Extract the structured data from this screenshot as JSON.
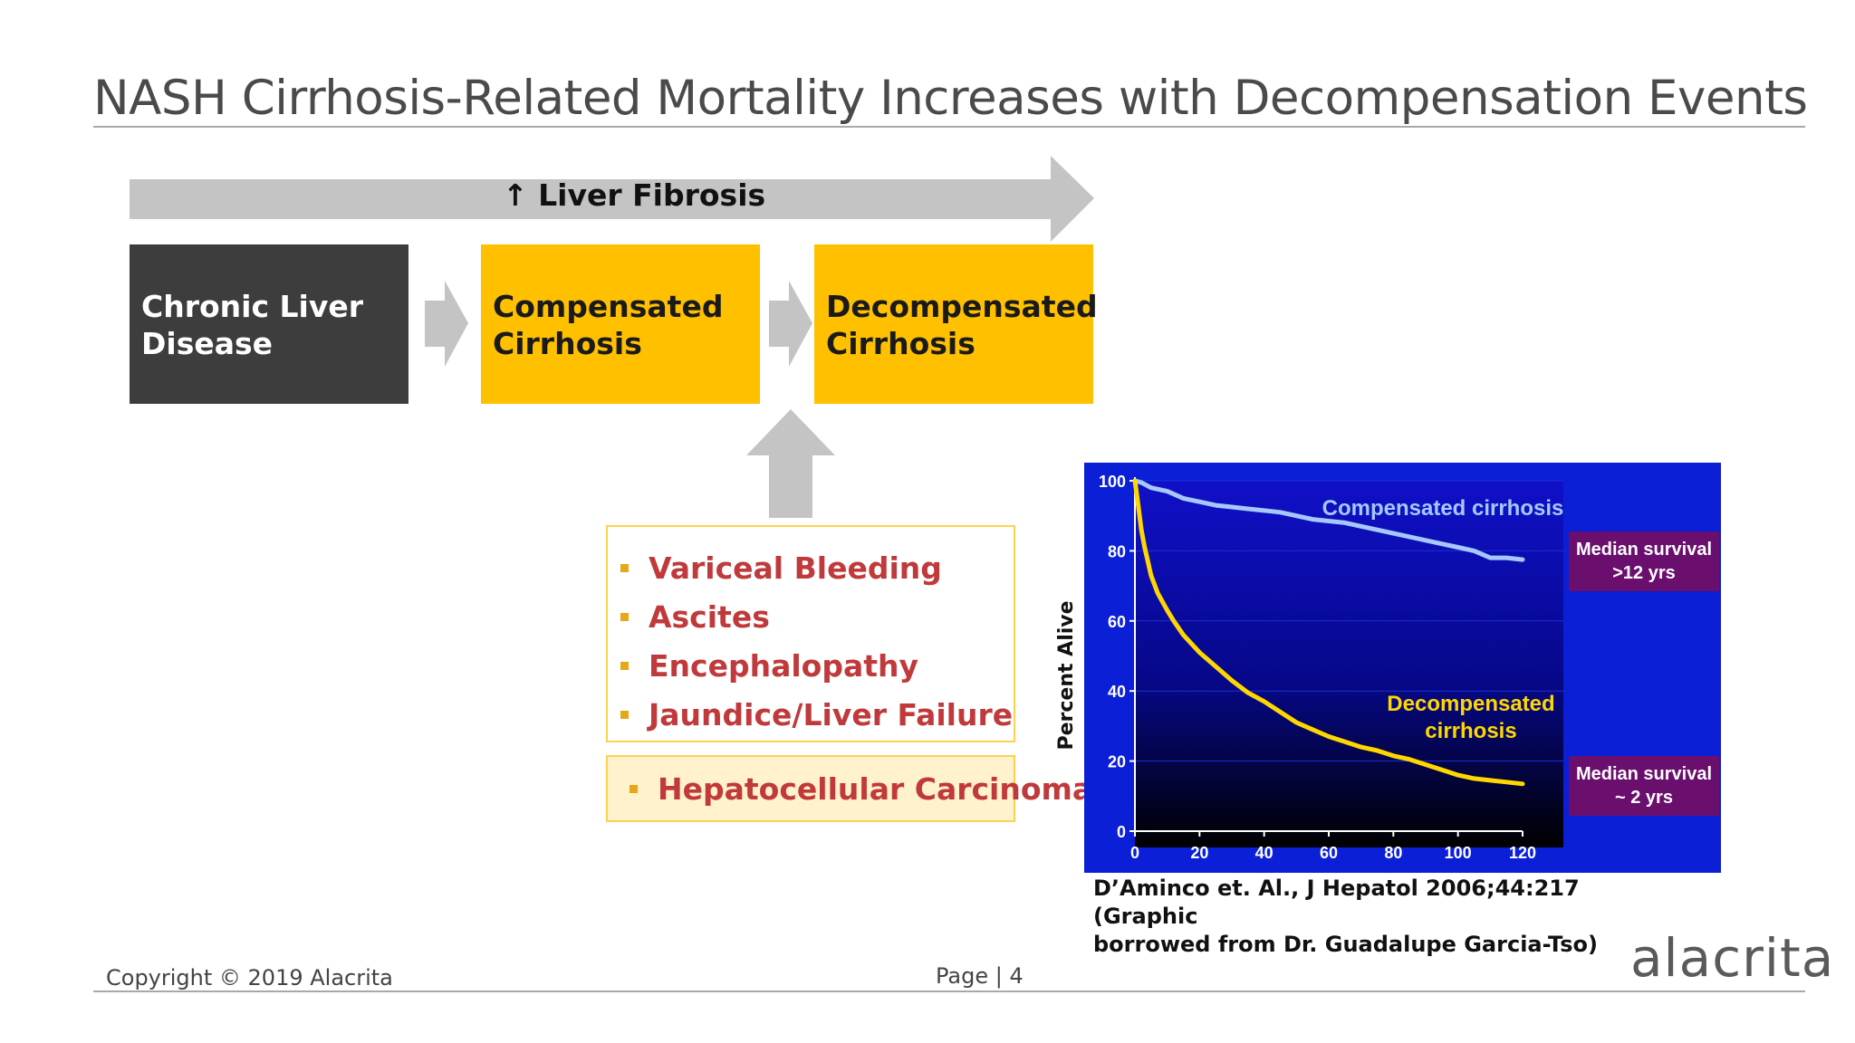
{
  "slide": {
    "title": "NASH Cirrhosis-Related Mortality Increases with Decompensation Events",
    "fibrosis_label": "↑ Liver Fibrosis",
    "stages": [
      {
        "line1": "Chronic Liver",
        "line2": "Disease"
      },
      {
        "line1": "Compensated",
        "line2": "Cirrhosis"
      },
      {
        "line1": "Decompensated",
        "line2": "Cirrhosis"
      }
    ],
    "events": [
      "Variceal Bleeding",
      "Ascites",
      "Encephalopathy",
      "Jaundice/Liver Failure"
    ],
    "hcc": "Hepatocellular Carcinoma",
    "citation_line1": "D’Aminco et. Al., J Hepatol 2006;44:217 (Graphic",
    "citation_line2": "borrowed from Dr. Guadalupe Garcia-Tso)",
    "copyright": "Copyright © 2019 Alacrita",
    "page": "Page | 4",
    "logo": "alacrita",
    "colors": {
      "accent": "#ffc000",
      "dark": "#3d3d3d",
      "event_text": "#c0393b",
      "chart_bg": "#0a1fd6"
    }
  },
  "chart_data": {
    "type": "line",
    "title": "",
    "xlabel": "",
    "ylabel": "Percent Alive",
    "xlim": [
      0,
      120
    ],
    "ylim": [
      0,
      100
    ],
    "xticks": [
      "0",
      "20",
      "40",
      "60",
      "80",
      "100",
      "120"
    ],
    "yticks": [
      "0",
      "20",
      "40",
      "60",
      "80",
      "100"
    ],
    "series": [
      {
        "name": "Compensated cirrhosis",
        "color": "#a6c8ff",
        "x": [
          0,
          2,
          5,
          10,
          15,
          20,
          25,
          30,
          35,
          40,
          45,
          50,
          55,
          60,
          65,
          70,
          75,
          80,
          85,
          90,
          95,
          100,
          105,
          110,
          115,
          120
        ],
        "y": [
          100,
          99.5,
          98,
          97,
          95,
          94,
          93,
          92.5,
          92,
          91.5,
          91,
          90,
          89,
          88.5,
          88,
          87,
          86,
          85,
          84,
          83,
          82,
          81,
          80,
          78,
          78,
          77.5
        ]
      },
      {
        "name": "Decompensated cirrhosis",
        "color": "#ffd700",
        "x": [
          0,
          1,
          2,
          3,
          4,
          5,
          7,
          10,
          12,
          15,
          20,
          25,
          30,
          35,
          40,
          45,
          50,
          55,
          60,
          65,
          70,
          75,
          80,
          85,
          90,
          95,
          100,
          105,
          110,
          115,
          120
        ],
        "y": [
          100,
          93,
          86,
          81,
          77,
          73,
          68,
          63,
          60,
          56,
          51,
          47,
          43,
          39.5,
          37,
          34,
          31,
          29,
          27,
          25.5,
          24,
          23,
          21.5,
          20.5,
          19,
          17.5,
          16,
          15,
          14.5,
          14,
          13.5
        ]
      }
    ],
    "annotations": [
      {
        "series": "Compensated cirrhosis",
        "label": "Median survival",
        "value": ">12 yrs"
      },
      {
        "series": "Decompensated cirrhosis",
        "label": "Median survival",
        "value": "~ 2 yrs"
      }
    ]
  }
}
